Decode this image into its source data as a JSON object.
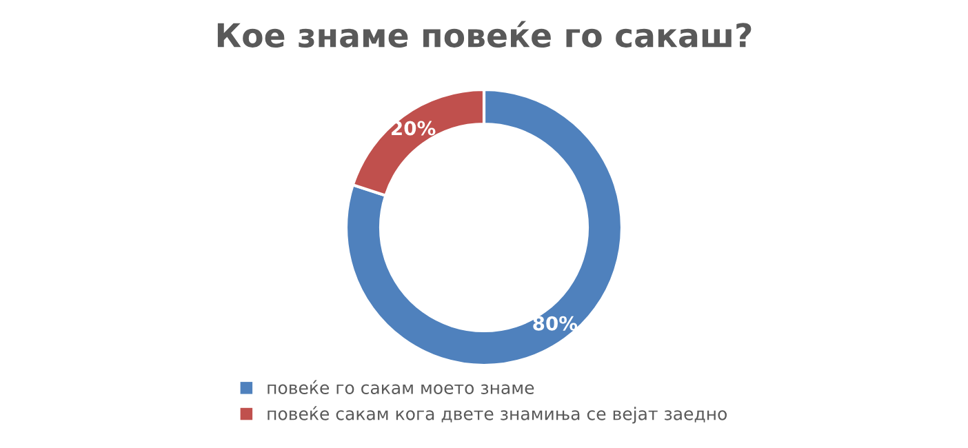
{
  "chart_data": {
    "type": "donut",
    "title": "Кое знаме повеќе го сакаш?",
    "categories": [
      "повеќе го сакам моето знаме",
      "повеќе сакам кога двете знамиња се вејат заедно"
    ],
    "values": [
      80,
      20
    ],
    "colors": [
      "#4f81bd",
      "#c0504d"
    ],
    "value_labels": [
      "80%",
      "20%"
    ],
    "legend": "bottom"
  }
}
